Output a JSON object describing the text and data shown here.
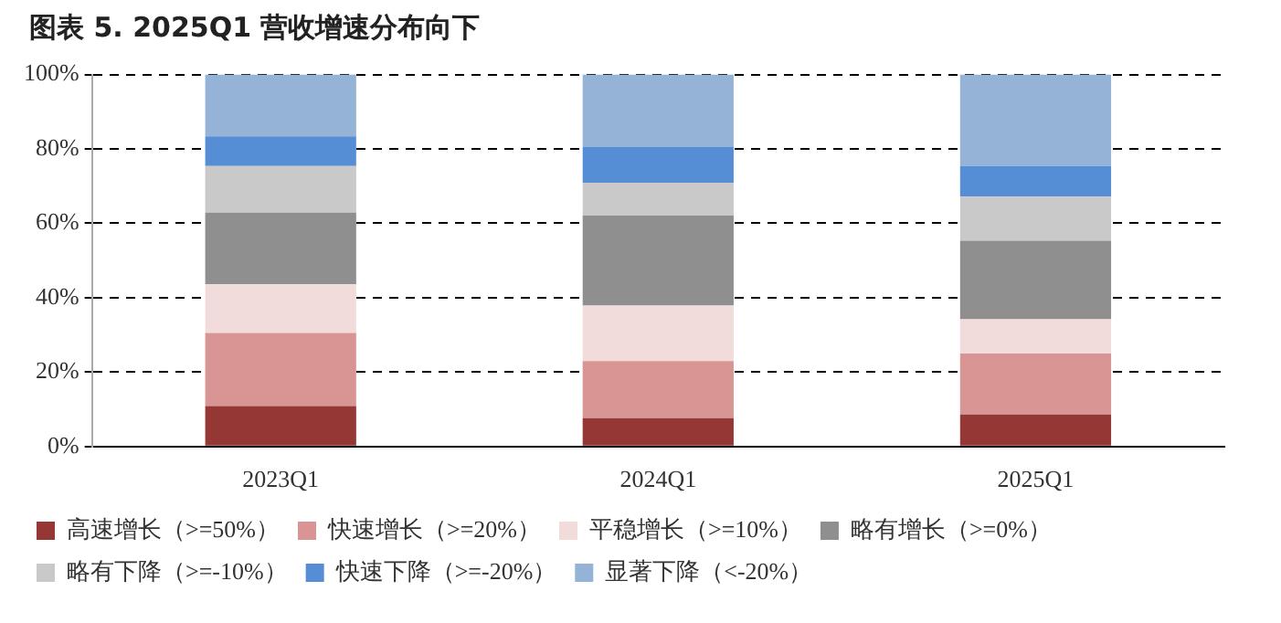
{
  "chart_data": {
    "type": "bar",
    "stacked": true,
    "title": "图表 5. 2025Q1 营收增速分布向下",
    "categories": [
      "2023Q1",
      "2024Q1",
      "2025Q1"
    ],
    "series": [
      {
        "name": "高速增长（>=50%）",
        "color": "#953735",
        "values": [
          10.9,
          7.6,
          8.6
        ]
      },
      {
        "name": "快速增长（>=20%）",
        "color": "#d99594",
        "values": [
          19.6,
          15.4,
          16.4
        ]
      },
      {
        "name": "平稳增长（>=10%）",
        "color": "#f2dcdb",
        "values": [
          13.1,
          14.9,
          9.2
        ]
      },
      {
        "name": "略有增长（>=0%）",
        "color": "#8f8f8f",
        "values": [
          19.3,
          24.2,
          21.1
        ]
      },
      {
        "name": "略有下降（>=-10%）",
        "color": "#c9c9c9",
        "values": [
          12.5,
          8.8,
          11.9
        ]
      },
      {
        "name": "快速下降（>=-20%）",
        "color": "#558ed5",
        "values": [
          8.0,
          9.6,
          8.2
        ]
      },
      {
        "name": "显著下降（<-20%）",
        "color": "#95b3d7",
        "values": [
          16.6,
          19.5,
          24.6
        ]
      }
    ],
    "ylim": [
      0,
      100
    ],
    "yticks": [
      {
        "value": 0,
        "label": "0%"
      },
      {
        "value": 20,
        "label": "20%"
      },
      {
        "value": 40,
        "label": "40%"
      },
      {
        "value": 60,
        "label": "60%"
      },
      {
        "value": 80,
        "label": "80%"
      },
      {
        "value": 100,
        "label": "100%"
      }
    ],
    "grid": "y",
    "legend": "bottom"
  }
}
